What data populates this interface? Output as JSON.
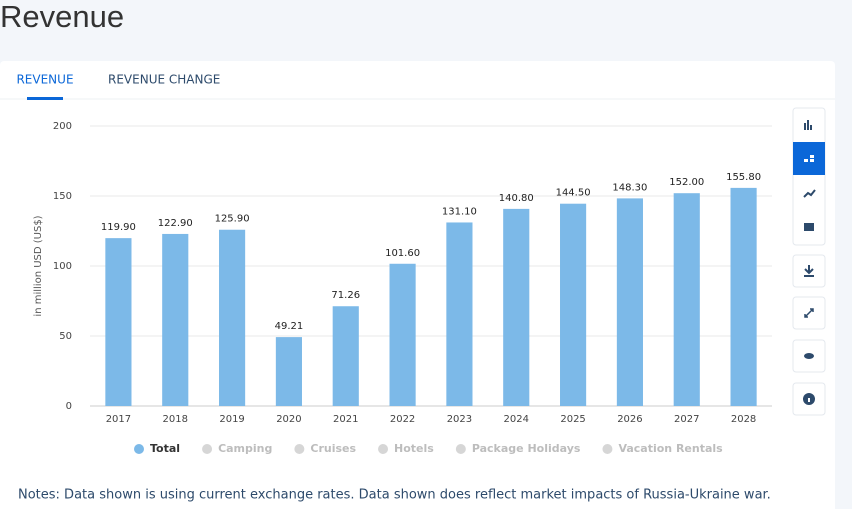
{
  "header": {
    "title": "Revenue"
  },
  "tabs": [
    "REVENUE",
    "REVENUE CHANGE"
  ],
  "chart_data": {
    "type": "bar",
    "y_label": "in million USD (US$)",
    "categories": [
      "2017",
      "2018",
      "2019",
      "2020",
      "2021",
      "2022",
      "2023",
      "2024",
      "2025",
      "2026",
      "2027",
      "2028"
    ],
    "series": [
      {
        "name": "Total",
        "color": "#7cb9e8",
        "values": [
          119.9,
          122.9,
          125.9,
          49.21,
          71.26,
          101.6,
          131.1,
          140.8,
          144.5,
          148.3,
          152.0,
          155.8
        ],
        "value_labels": [
          "119.90",
          "122.90",
          "125.90",
          "49.21",
          "71.26",
          "101.60",
          "131.10",
          "140.80",
          "144.50",
          "148.30",
          "152.00",
          "155.80"
        ]
      }
    ],
    "hidden_series": [
      "Camping",
      "Cruises",
      "Hotels",
      "Package Holidays",
      "Vacation Rentals"
    ],
    "ylim": [
      0,
      200
    ],
    "yticks": [
      0,
      50,
      100,
      150,
      200
    ],
    "grid": true
  },
  "notes": "Notes: Data shown is using current exchange rates. Data shown does reflect market impacts of Russia-Ukraine war."
}
